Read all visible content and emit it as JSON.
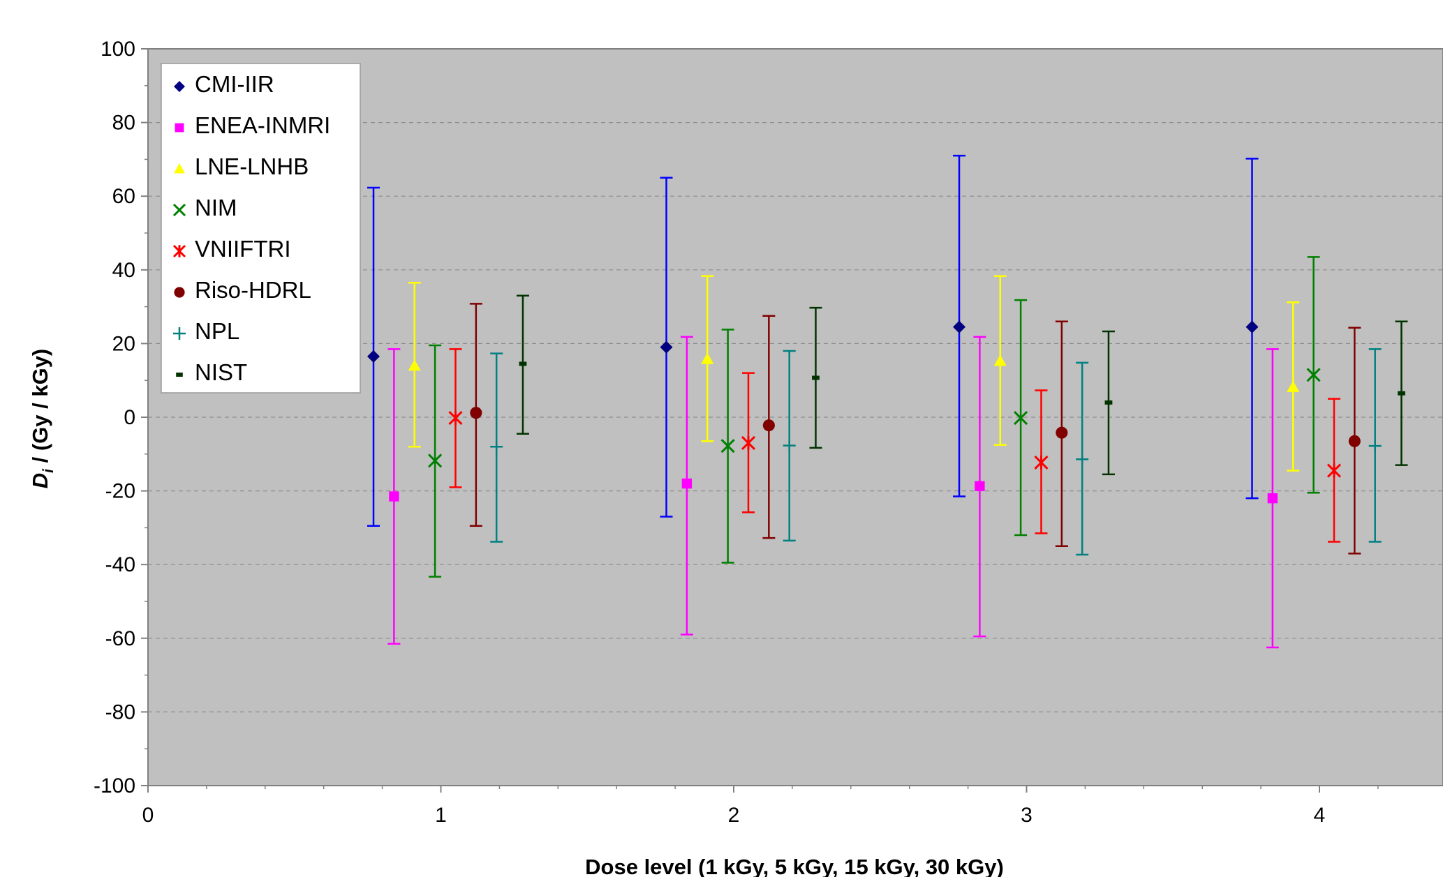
{
  "chart_data": {
    "type": "scatter",
    "title": "",
    "xlabel": "Dose level (1 kGy, 5 kGy, 15 kGy, 30 kGy)",
    "ylabel_main": "D",
    "ylabel_sub": "i",
    "ylabel_rest": " / (Gy / kGy)",
    "xlim": [
      0,
      4.4
    ],
    "ylim": [
      -100,
      100
    ],
    "x_ticks": [
      0,
      1,
      2,
      3,
      4
    ],
    "y_ticks": [
      -100,
      -80,
      -60,
      -40,
      -20,
      0,
      20,
      40,
      60,
      80,
      100
    ],
    "grid": "horizontal dashed",
    "legend_position": "top-left",
    "background_color": "#c0c0c0",
    "series": [
      {
        "name": "CMI-IIR",
        "marker": "diamond",
        "color": "#000080",
        "bar_color": "#0000ff",
        "points": [
          {
            "x": 0.77,
            "y": 16.5,
            "lo": -29.5,
            "hi": 62.3
          },
          {
            "x": 1.77,
            "y": 19,
            "lo": -27,
            "hi": 65
          },
          {
            "x": 2.77,
            "y": 24.5,
            "lo": -21.5,
            "hi": 71
          },
          {
            "x": 3.77,
            "y": 24.5,
            "lo": -22,
            "hi": 70.2
          }
        ]
      },
      {
        "name": "ENEA-INMRI",
        "marker": "square",
        "color": "#ff00ff",
        "bar_color": "#ff00ff",
        "points": [
          {
            "x": 0.84,
            "y": -21.5,
            "lo": -61.5,
            "hi": 18.5
          },
          {
            "x": 1.84,
            "y": -18,
            "lo": -59,
            "hi": 21.8
          },
          {
            "x": 2.84,
            "y": -18.7,
            "lo": -59.5,
            "hi": 21.8
          },
          {
            "x": 3.84,
            "y": -22,
            "lo": -62.5,
            "hi": 18.5
          }
        ]
      },
      {
        "name": "LNE-LNHB",
        "marker": "triangle",
        "color": "#ffff00",
        "bar_color": "#ffff00",
        "points": [
          {
            "x": 0.91,
            "y": 14,
            "lo": -8,
            "hi": 36.5
          },
          {
            "x": 1.91,
            "y": 15.8,
            "lo": -6.5,
            "hi": 38.3
          },
          {
            "x": 2.91,
            "y": 15.3,
            "lo": -7.5,
            "hi": 38.3
          },
          {
            "x": 3.91,
            "y": 8.2,
            "lo": -14.5,
            "hi": 31.2
          }
        ]
      },
      {
        "name": "NIM",
        "marker": "x",
        "color": "#008000",
        "bar_color": "#008000",
        "points": [
          {
            "x": 0.98,
            "y": -11.8,
            "lo": -43.3,
            "hi": 19.5
          },
          {
            "x": 1.98,
            "y": -7.8,
            "lo": -39.5,
            "hi": 23.8
          },
          {
            "x": 2.98,
            "y": -0.2,
            "lo": -32,
            "hi": 31.8
          },
          {
            "x": 3.98,
            "y": 11.5,
            "lo": -20.5,
            "hi": 43.5
          }
        ]
      },
      {
        "name": "VNIIFTRI",
        "marker": "star",
        "color": "#ff0000",
        "bar_color": "#ff0000",
        "points": [
          {
            "x": 1.05,
            "y": -0.2,
            "lo": -19,
            "hi": 18.5
          },
          {
            "x": 2.05,
            "y": -7,
            "lo": -25.8,
            "hi": 12
          },
          {
            "x": 3.05,
            "y": -12.3,
            "lo": -31.5,
            "hi": 7.3
          },
          {
            "x": 4.05,
            "y": -14.5,
            "lo": -33.8,
            "hi": 5
          }
        ]
      },
      {
        "name": "Riso-HDRL",
        "marker": "circle",
        "color": "#800000",
        "bar_color": "#800000",
        "points": [
          {
            "x": 1.12,
            "y": 1.2,
            "lo": -29.5,
            "hi": 30.8
          },
          {
            "x": 2.12,
            "y": -2.2,
            "lo": -32.8,
            "hi": 27.5
          },
          {
            "x": 3.12,
            "y": -4.2,
            "lo": -35,
            "hi": 26
          },
          {
            "x": 4.12,
            "y": -6.5,
            "lo": -37,
            "hi": 24.3
          }
        ]
      },
      {
        "name": "NPL",
        "marker": "plus",
        "color": "#008080",
        "bar_color": "#008080",
        "points": [
          {
            "x": 1.19,
            "y": -8,
            "lo": -33.8,
            "hi": 17.3
          },
          {
            "x": 2.19,
            "y": -7.7,
            "lo": -33.5,
            "hi": 18
          },
          {
            "x": 3.19,
            "y": -11.4,
            "lo": -37.3,
            "hi": 14.8
          },
          {
            "x": 4.19,
            "y": -7.8,
            "lo": -33.8,
            "hi": 18.5
          }
        ]
      },
      {
        "name": "NIST",
        "marker": "dash",
        "color": "#003300",
        "bar_color": "#003300",
        "points": [
          {
            "x": 1.28,
            "y": 14.5,
            "lo": -4.5,
            "hi": 33
          },
          {
            "x": 2.28,
            "y": 10.7,
            "lo": -8.3,
            "hi": 29.7
          },
          {
            "x": 3.28,
            "y": 4,
            "lo": -15.5,
            "hi": 23.3
          },
          {
            "x": 4.28,
            "y": 6.5,
            "lo": -13,
            "hi": 26
          }
        ]
      }
    ]
  }
}
